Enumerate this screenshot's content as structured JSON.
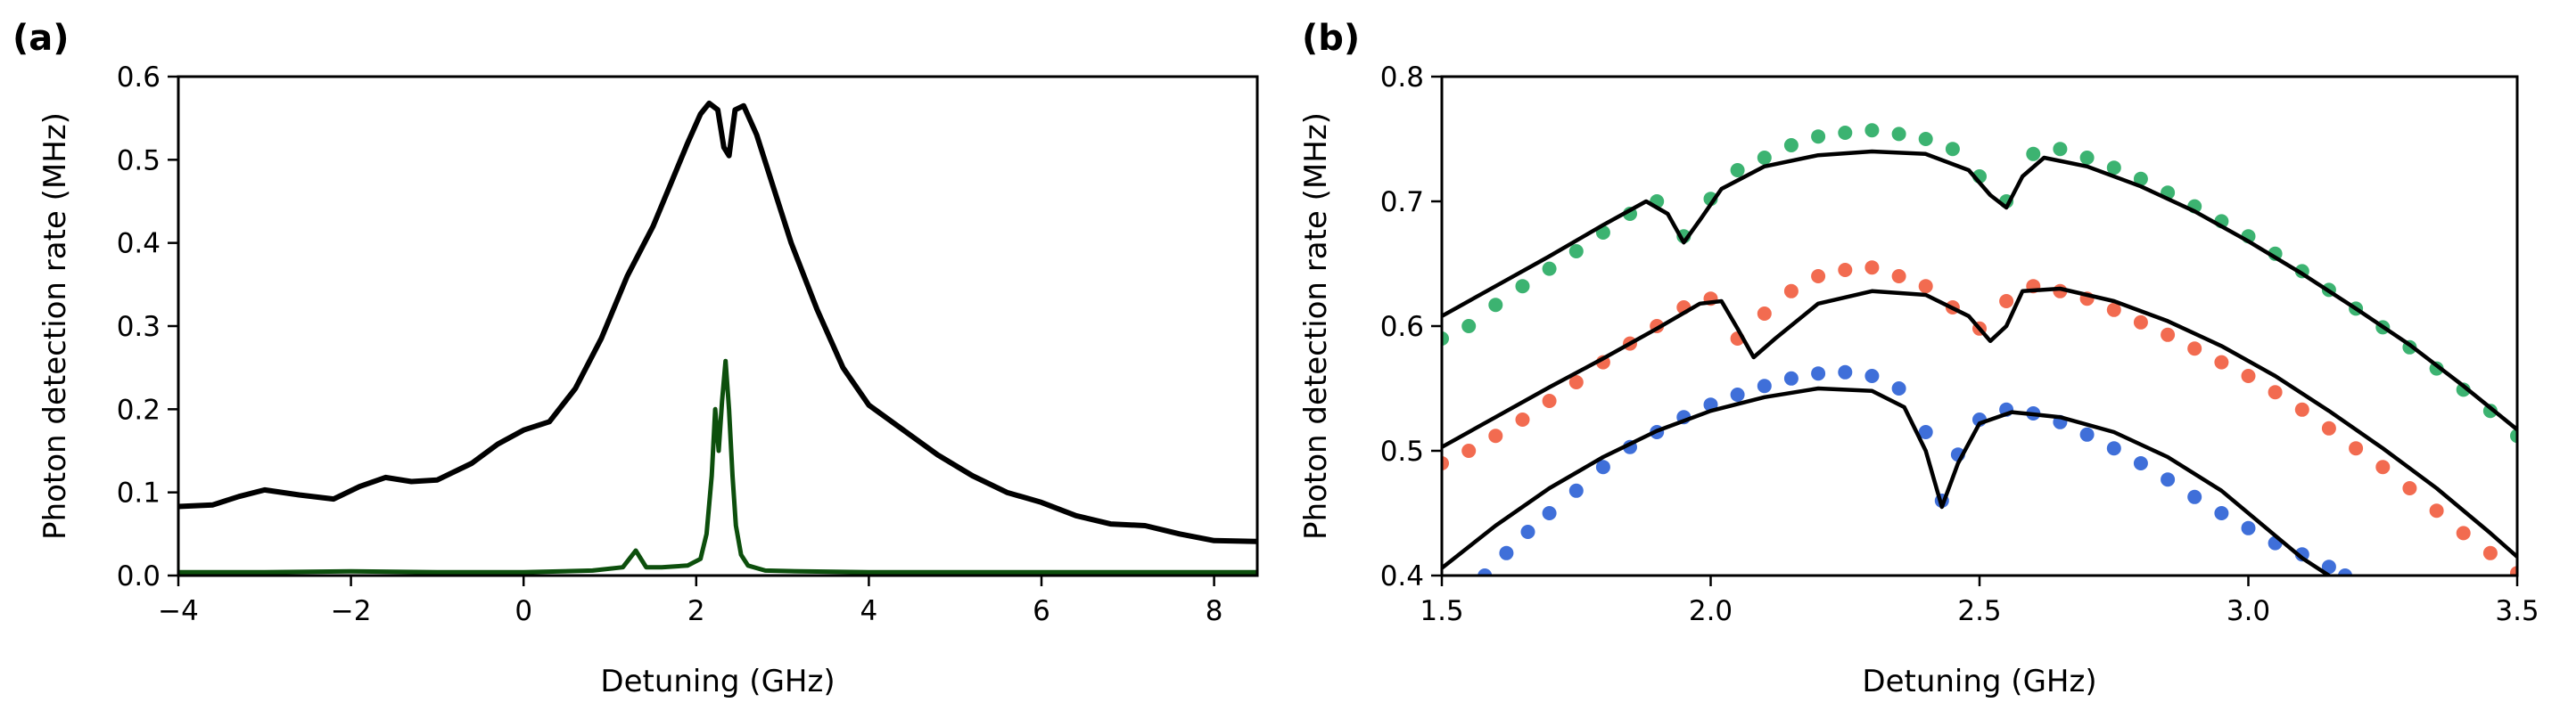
{
  "chart_data": [
    {
      "type": "line",
      "panel_label": "(a)",
      "xlabel": "Detuning (GHz)",
      "ylabel": "Photon detection rate (MHz)",
      "xlim": [
        -4,
        8.5
      ],
      "ylim": [
        0,
        0.6
      ],
      "xticks": [
        -4,
        -2,
        0,
        2,
        4,
        6,
        8
      ],
      "xtick_labels": [
        "−4",
        "−2",
        "0",
        "2",
        "4",
        "6",
        "8"
      ],
      "yticks": [
        0,
        0.1,
        0.2,
        0.3,
        0.4,
        0.5,
        0.6
      ],
      "ytick_labels": [
        "0.0",
        "0.1",
        "0.2",
        "0.3",
        "0.4",
        "0.5",
        "0.6"
      ],
      "grid": false,
      "series": [
        {
          "name": "black trace",
          "color": "#000000",
          "x": [
            -4.0,
            -3.6,
            -3.3,
            -3.0,
            -2.6,
            -2.2,
            -1.9,
            -1.6,
            -1.3,
            -1.0,
            -0.6,
            -0.3,
            0.0,
            0.3,
            0.6,
            0.9,
            1.2,
            1.5,
            1.7,
            1.9,
            2.05,
            2.15,
            2.25,
            2.32,
            2.38,
            2.45,
            2.55,
            2.7,
            2.9,
            3.1,
            3.4,
            3.7,
            4.0,
            4.4,
            4.8,
            5.2,
            5.6,
            6.0,
            6.4,
            6.8,
            7.2,
            7.6,
            8.0,
            8.5
          ],
          "y": [
            0.083,
            0.085,
            0.095,
            0.103,
            0.097,
            0.092,
            0.107,
            0.118,
            0.113,
            0.115,
            0.135,
            0.158,
            0.175,
            0.185,
            0.225,
            0.285,
            0.36,
            0.42,
            0.47,
            0.52,
            0.555,
            0.568,
            0.56,
            0.515,
            0.505,
            0.56,
            0.565,
            0.53,
            0.465,
            0.4,
            0.32,
            0.25,
            0.205,
            0.175,
            0.145,
            0.12,
            0.1,
            0.088,
            0.072,
            0.062,
            0.06,
            0.05,
            0.042,
            0.041
          ]
        },
        {
          "name": "green trace",
          "color": "#0d4f0d",
          "x": [
            -4.0,
            -3.0,
            -2.0,
            -1.0,
            0.0,
            0.8,
            1.15,
            1.3,
            1.42,
            1.6,
            1.9,
            2.05,
            2.12,
            2.18,
            2.22,
            2.26,
            2.3,
            2.34,
            2.38,
            2.42,
            2.46,
            2.52,
            2.6,
            2.8,
            3.2,
            4.0,
            5.0,
            6.0,
            7.0,
            8.0,
            8.5
          ],
          "y": [
            0.004,
            0.004,
            0.005,
            0.004,
            0.004,
            0.006,
            0.01,
            0.03,
            0.01,
            0.01,
            0.012,
            0.02,
            0.05,
            0.12,
            0.2,
            0.15,
            0.21,
            0.258,
            0.2,
            0.12,
            0.06,
            0.025,
            0.012,
            0.006,
            0.005,
            0.004,
            0.004,
            0.004,
            0.004,
            0.004,
            0.004
          ]
        }
      ]
    },
    {
      "type": "scatter",
      "panel_label": "(b)",
      "xlabel": "Detuning (GHz)",
      "ylabel": "Photon detection rate (MHz)",
      "xlim": [
        1.5,
        3.5
      ],
      "ylim": [
        0.4,
        0.8
      ],
      "xticks": [
        1.5,
        2.0,
        2.5,
        3.0,
        3.5
      ],
      "xtick_labels": [
        "1.5",
        "2.0",
        "2.5",
        "3.0",
        "3.5"
      ],
      "yticks": [
        0.4,
        0.5,
        0.6,
        0.7,
        0.8
      ],
      "ytick_labels": [
        "0.4",
        "0.5",
        "0.6",
        "0.7",
        "0.8"
      ],
      "grid": false,
      "series": [
        {
          "name": "green data",
          "color": "#3cb371",
          "fit": {
            "x": [
              1.5,
              1.6,
              1.7,
              1.8,
              1.88,
              1.92,
              1.95,
              1.98,
              2.02,
              2.1,
              2.2,
              2.3,
              2.4,
              2.48,
              2.52,
              2.55,
              2.58,
              2.62,
              2.7,
              2.8,
              2.9,
              3.0,
              3.1,
              3.2,
              3.3,
              3.4,
              3.5
            ],
            "y": [
              0.608,
              0.632,
              0.656,
              0.681,
              0.7,
              0.69,
              0.667,
              0.685,
              0.71,
              0.728,
              0.737,
              0.74,
              0.738,
              0.725,
              0.705,
              0.695,
              0.72,
              0.735,
              0.728,
              0.712,
              0.692,
              0.668,
              0.642,
              0.614,
              0.585,
              0.552,
              0.517
            ]
          },
          "points": {
            "x": [
              1.5,
              1.55,
              1.6,
              1.65,
              1.7,
              1.75,
              1.8,
              1.85,
              1.9,
              1.95,
              2.0,
              2.05,
              2.1,
              2.15,
              2.2,
              2.25,
              2.3,
              2.35,
              2.4,
              2.45,
              2.5,
              2.55,
              2.6,
              2.65,
              2.7,
              2.75,
              2.8,
              2.85,
              2.9,
              2.95,
              3.0,
              3.05,
              3.1,
              3.15,
              3.2,
              3.25,
              3.3,
              3.35,
              3.4,
              3.45,
              3.5
            ],
            "y": [
              0.59,
              0.6,
              0.617,
              0.632,
              0.646,
              0.66,
              0.675,
              0.69,
              0.7,
              0.672,
              0.702,
              0.725,
              0.735,
              0.745,
              0.752,
              0.755,
              0.757,
              0.754,
              0.75,
              0.742,
              0.72,
              0.7,
              0.738,
              0.742,
              0.735,
              0.727,
              0.718,
              0.707,
              0.696,
              0.684,
              0.672,
              0.658,
              0.644,
              0.629,
              0.614,
              0.599,
              0.583,
              0.566,
              0.549,
              0.532,
              0.512
            ]
          }
        },
        {
          "name": "red data",
          "color": "#f26b50",
          "fit": {
            "x": [
              1.5,
              1.6,
              1.7,
              1.8,
              1.9,
              1.98,
              2.02,
              2.05,
              2.08,
              2.12,
              2.2,
              2.3,
              2.4,
              2.48,
              2.52,
              2.55,
              2.58,
              2.65,
              2.75,
              2.85,
              2.95,
              3.05,
              3.15,
              3.25,
              3.35,
              3.45,
              3.5
            ],
            "y": [
              0.503,
              0.527,
              0.551,
              0.574,
              0.598,
              0.618,
              0.62,
              0.598,
              0.575,
              0.59,
              0.618,
              0.628,
              0.625,
              0.608,
              0.588,
              0.6,
              0.628,
              0.63,
              0.62,
              0.604,
              0.584,
              0.56,
              0.532,
              0.502,
              0.47,
              0.434,
              0.415
            ]
          },
          "points": {
            "x": [
              1.5,
              1.55,
              1.6,
              1.65,
              1.7,
              1.75,
              1.8,
              1.85,
              1.9,
              1.95,
              2.0,
              2.05,
              2.1,
              2.15,
              2.2,
              2.25,
              2.3,
              2.35,
              2.4,
              2.45,
              2.5,
              2.55,
              2.6,
              2.65,
              2.7,
              2.75,
              2.8,
              2.85,
              2.9,
              2.95,
              3.0,
              3.05,
              3.1,
              3.15,
              3.2,
              3.25,
              3.3,
              3.35,
              3.4,
              3.45,
              3.5
            ],
            "y": [
              0.49,
              0.5,
              0.512,
              0.525,
              0.54,
              0.555,
              0.571,
              0.586,
              0.6,
              0.615,
              0.622,
              0.59,
              0.61,
              0.628,
              0.64,
              0.645,
              0.647,
              0.64,
              0.632,
              0.615,
              0.598,
              0.62,
              0.632,
              0.628,
              0.622,
              0.613,
              0.603,
              0.593,
              0.582,
              0.571,
              0.56,
              0.547,
              0.533,
              0.518,
              0.502,
              0.487,
              0.47,
              0.452,
              0.434,
              0.418,
              0.402
            ]
          }
        },
        {
          "name": "blue data",
          "color": "#3f6fd9",
          "fit": {
            "x": [
              1.5,
              1.6,
              1.7,
              1.8,
              1.9,
              2.0,
              2.1,
              2.2,
              2.3,
              2.36,
              2.4,
              2.43,
              2.46,
              2.5,
              2.56,
              2.65,
              2.75,
              2.85,
              2.95,
              3.05,
              3.1,
              3.15
            ],
            "y": [
              0.406,
              0.44,
              0.47,
              0.495,
              0.516,
              0.532,
              0.543,
              0.55,
              0.548,
              0.535,
              0.5,
              0.455,
              0.49,
              0.522,
              0.531,
              0.527,
              0.515,
              0.495,
              0.468,
              0.432,
              0.414,
              0.4
            ]
          },
          "points": {
            "x": [
              1.58,
              1.62,
              1.66,
              1.7,
              1.75,
              1.8,
              1.85,
              1.9,
              1.95,
              2.0,
              2.05,
              2.1,
              2.15,
              2.2,
              2.25,
              2.3,
              2.35,
              2.4,
              2.43,
              2.46,
              2.5,
              2.55,
              2.6,
              2.65,
              2.7,
              2.75,
              2.8,
              2.85,
              2.9,
              2.95,
              3.0,
              3.05,
              3.1,
              3.15,
              3.18
            ],
            "y": [
              0.4,
              0.418,
              0.435,
              0.45,
              0.468,
              0.487,
              0.503,
              0.515,
              0.527,
              0.537,
              0.545,
              0.552,
              0.558,
              0.562,
              0.563,
              0.56,
              0.55,
              0.515,
              0.46,
              0.497,
              0.525,
              0.533,
              0.53,
              0.523,
              0.513,
              0.502,
              0.49,
              0.477,
              0.463,
              0.45,
              0.438,
              0.426,
              0.417,
              0.407,
              0.4
            ]
          }
        }
      ]
    }
  ]
}
